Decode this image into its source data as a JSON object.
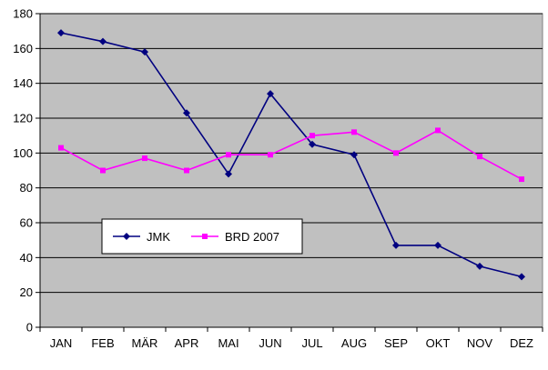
{
  "chart_data": {
    "type": "line",
    "categories": [
      "JAN",
      "FEB",
      "MÄR",
      "APR",
      "MAI",
      "JUN",
      "JUL",
      "AUG",
      "SEP",
      "OKT",
      "NOV",
      "DEZ"
    ],
    "series": [
      {
        "name": "JMK",
        "color": "#000080",
        "marker": "diamond",
        "values": [
          169,
          164,
          158,
          123,
          88,
          134,
          105,
          99,
          47,
          47,
          35,
          29
        ]
      },
      {
        "name": "BRD 2007",
        "color": "#ff00ff",
        "marker": "square",
        "values": [
          103,
          90,
          97,
          90,
          99,
          99,
          110,
          112,
          100,
          113,
          98,
          85
        ]
      }
    ],
    "ylim": [
      0,
      180
    ],
    "yticks": [
      0,
      20,
      40,
      60,
      80,
      100,
      120,
      140,
      160,
      180
    ],
    "grid": true,
    "plot_background": "#c0c0c0",
    "legend": "inside-lower-left"
  }
}
